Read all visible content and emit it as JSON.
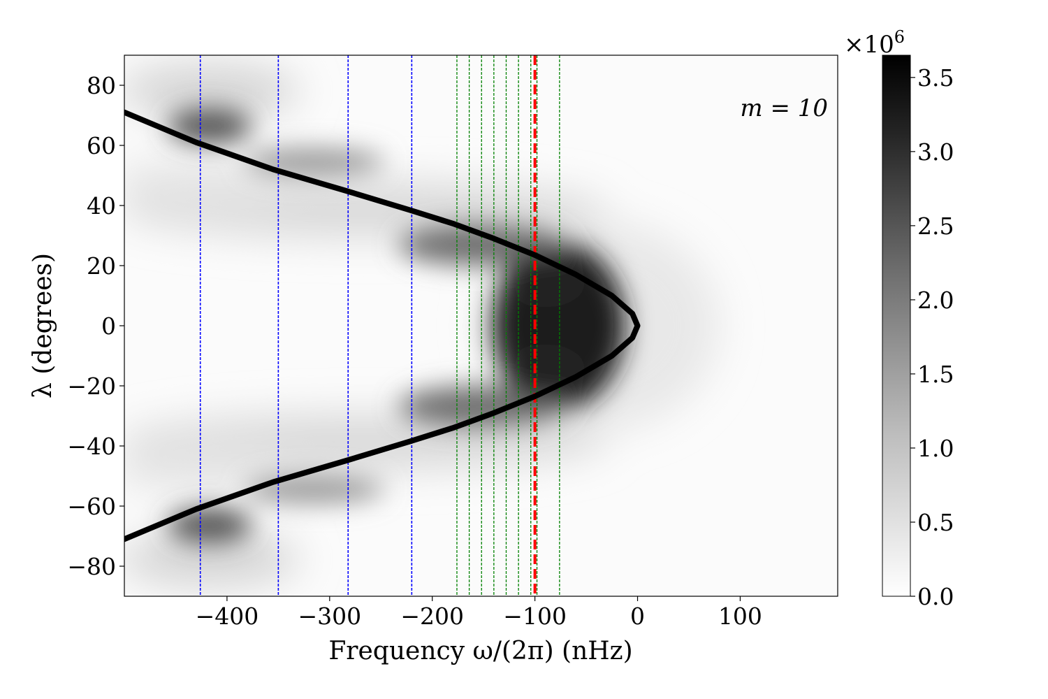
{
  "chart_data": {
    "type": "heatmap",
    "title": "",
    "xlabel": "Frequency ω/(2π) (nHz)",
    "ylabel": "λ (degrees)",
    "annotation": "m = 10",
    "xlim": [
      -500,
      195
    ],
    "ylim": [
      -90,
      90
    ],
    "x_ticks": [
      -400,
      -300,
      -200,
      -100,
      0,
      100
    ],
    "x_tick_labels": [
      "−400",
      "−300",
      "−200",
      "−100",
      "0",
      "100"
    ],
    "y_ticks": [
      80,
      60,
      40,
      20,
      0,
      -20,
      -40,
      -60,
      -80
    ],
    "y_tick_labels": [
      "80",
      "60",
      "40",
      "20",
      "0",
      "−20",
      "−40",
      "−60",
      "−80"
    ],
    "colorbar": {
      "min": 0.0,
      "max": 3.65,
      "scale_label": "×10",
      "scale_exponent": "6",
      "ticks": [
        0.0,
        0.5,
        1.0,
        1.5,
        2.0,
        2.5,
        3.0,
        3.5
      ],
      "tick_labels": [
        "0.0",
        "0.5",
        "1.0",
        "1.5",
        "2.0",
        "2.5",
        "3.0",
        "3.5"
      ]
    },
    "curve": {
      "name": "critical-latitude curve",
      "color": "#000000",
      "points": [
        {
          "x": -500,
          "y": 71
        },
        {
          "x": -430,
          "y": 61
        },
        {
          "x": -355,
          "y": 52
        },
        {
          "x": -285,
          "y": 45
        },
        {
          "x": -222,
          "y": 38.5
        },
        {
          "x": -180,
          "y": 34
        },
        {
          "x": -140,
          "y": 29
        },
        {
          "x": -100,
          "y": 23.5
        },
        {
          "x": -60,
          "y": 17
        },
        {
          "x": -25,
          "y": 10
        },
        {
          "x": -5,
          "y": 4
        },
        {
          "x": 0,
          "y": 0
        },
        {
          "x": -5,
          "y": -4
        },
        {
          "x": -25,
          "y": -10
        },
        {
          "x": -60,
          "y": -17
        },
        {
          "x": -100,
          "y": -23.5
        },
        {
          "x": -140,
          "y": -29
        },
        {
          "x": -180,
          "y": -34
        },
        {
          "x": -222,
          "y": -38.5
        },
        {
          "x": -285,
          "y": -45
        },
        {
          "x": -355,
          "y": -52
        },
        {
          "x": -430,
          "y": -61
        },
        {
          "x": -500,
          "y": -71
        }
      ]
    },
    "blue_lines": {
      "color": "#0000ff",
      "x": [
        -426,
        -350,
        -282,
        -220
      ]
    },
    "green_lines": {
      "color": "#008000",
      "x": [
        -176,
        -164,
        -152,
        -140,
        -128,
        -116,
        -104,
        -98,
        -76
      ]
    },
    "red_line": {
      "color": "#ff0000",
      "x": -100
    }
  }
}
